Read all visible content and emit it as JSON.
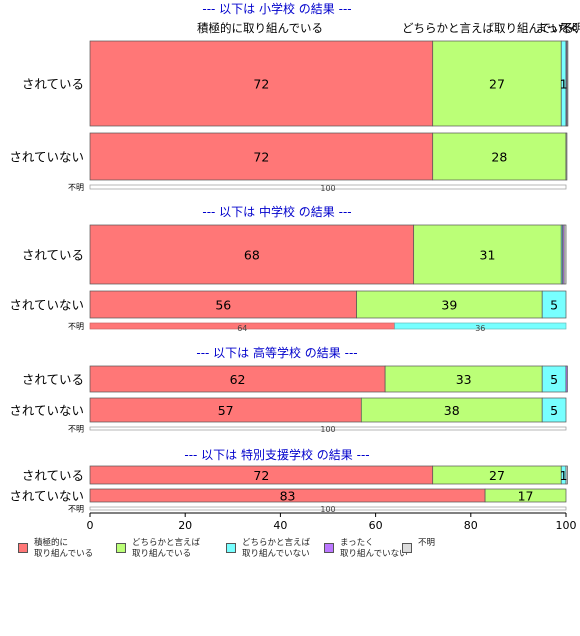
{
  "chart_data": {
    "type": "bar",
    "orientation": "horizontal",
    "stacked": true,
    "xlim": [
      0,
      100
    ],
    "xticks": [
      "0",
      "20",
      "40",
      "60",
      "80",
      "100"
    ],
    "categories": [
      "積極的に\n取り組んでいる",
      "どちらかと言えば\n取り組んでいる",
      "どちらかと言えば\n取り組んでいない",
      "まったく\n取り組んでいない",
      "不明"
    ],
    "colors": [
      "#ff7777",
      "#bbff77",
      "#77ffff",
      "#bb77ff",
      "#dddddd"
    ],
    "top_labels": [
      "積極的に取り組んでいる",
      "どちらかと言えば取り組んでいる",
      "まったく",
      "不明"
    ],
    "panels": [
      {
        "title": "--- 以下は 小学校 の結果 ---",
        "rows": [
          {
            "label": "されている",
            "values": [
              72,
              27,
              1,
              0.2,
              0.2
            ],
            "labels": [
              "72",
              "27",
              "1",
              "",
              ""
            ]
          },
          {
            "label": "されていない",
            "values": [
              72,
              28,
              0,
              0,
              0.2
            ],
            "labels": [
              "72",
              "28",
              "",
              "",
              ""
            ]
          },
          {
            "label": "不明",
            "values": [
              0,
              0,
              0,
              0,
              100
            ],
            "labels": [
              "",
              "",
              "",
              "",
              "100"
            ]
          }
        ]
      },
      {
        "title": "--- 以下は 中学校 の結果 ---",
        "rows": [
          {
            "label": "されている",
            "values": [
              68,
              31,
              0.3,
              0.3,
              0.4
            ],
            "labels": [
              "68",
              "31",
              "",
              "",
              ""
            ]
          },
          {
            "label": "されていない",
            "values": [
              56,
              39,
              5,
              0,
              0
            ],
            "labels": [
              "56",
              "39",
              "5",
              "",
              ""
            ]
          },
          {
            "label": "不明",
            "values": [
              64,
              0,
              36,
              0,
              0
            ],
            "labels": [
              "64",
              "",
              "36",
              "",
              ""
            ]
          }
        ]
      },
      {
        "title": "--- 以下は 高等学校 の結果 ---",
        "rows": [
          {
            "label": "されている",
            "values": [
              62,
              33,
              5,
              0.3,
              0
            ],
            "labels": [
              "62",
              "33",
              "5",
              "",
              ""
            ]
          },
          {
            "label": "されていない",
            "values": [
              57,
              38,
              5,
              0,
              0
            ],
            "labels": [
              "57",
              "38",
              "5",
              "",
              ""
            ]
          },
          {
            "label": "不明",
            "values": [
              0,
              0,
              0,
              0,
              100
            ],
            "labels": [
              "",
              "",
              "",
              "",
              "100"
            ]
          }
        ]
      },
      {
        "title": "--- 以下は 特別支援学校 の結果 ---",
        "rows": [
          {
            "label": "されている",
            "values": [
              72,
              27,
              1,
              0,
              0.3
            ],
            "labels": [
              "72",
              "27",
              "1",
              "",
              ""
            ]
          },
          {
            "label": "されていない",
            "values": [
              83,
              17,
              0,
              0,
              0
            ],
            "labels": [
              "83",
              "17",
              "",
              "",
              ""
            ]
          },
          {
            "label": "不明",
            "values": [
              0,
              0,
              0,
              0,
              100
            ],
            "labels": [
              "",
              "",
              "",
              "",
              "100"
            ]
          }
        ]
      }
    ]
  }
}
